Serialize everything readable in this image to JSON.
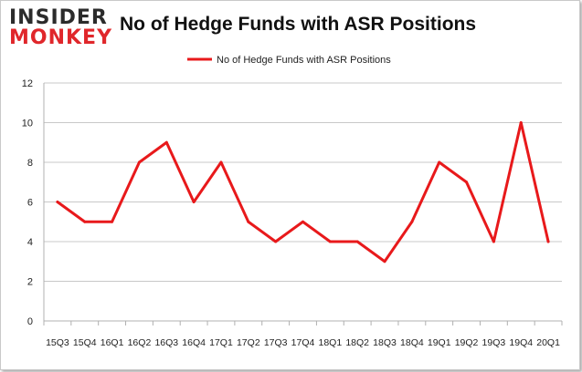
{
  "logo": {
    "line1": "INSIDER",
    "line2": "MONKEY"
  },
  "colors": {
    "series": "#e8191b",
    "grid": "#c8c8c8",
    "axis": "#b0b0b0"
  },
  "chart_data": {
    "type": "line",
    "title": "No of Hedge Funds with ASR Positions",
    "xlabel": "",
    "ylabel": "",
    "ylim": [
      0,
      12
    ],
    "yticks": [
      0,
      2,
      4,
      6,
      8,
      10,
      12
    ],
    "grid": true,
    "legend_position": "top",
    "categories": [
      "15Q3",
      "15Q4",
      "16Q1",
      "16Q2",
      "16Q3",
      "16Q4",
      "17Q1",
      "17Q2",
      "17Q3",
      "17Q4",
      "18Q1",
      "18Q2",
      "18Q3",
      "18Q4",
      "19Q1",
      "19Q2",
      "19Q3",
      "19Q4",
      "20Q1"
    ],
    "series": [
      {
        "name": "No of Hedge Funds with ASR Positions",
        "values": [
          6,
          5,
          5,
          8,
          9,
          6,
          8,
          5,
          4,
          5,
          4,
          4,
          3,
          5,
          8,
          7,
          4,
          10,
          4
        ]
      }
    ]
  }
}
